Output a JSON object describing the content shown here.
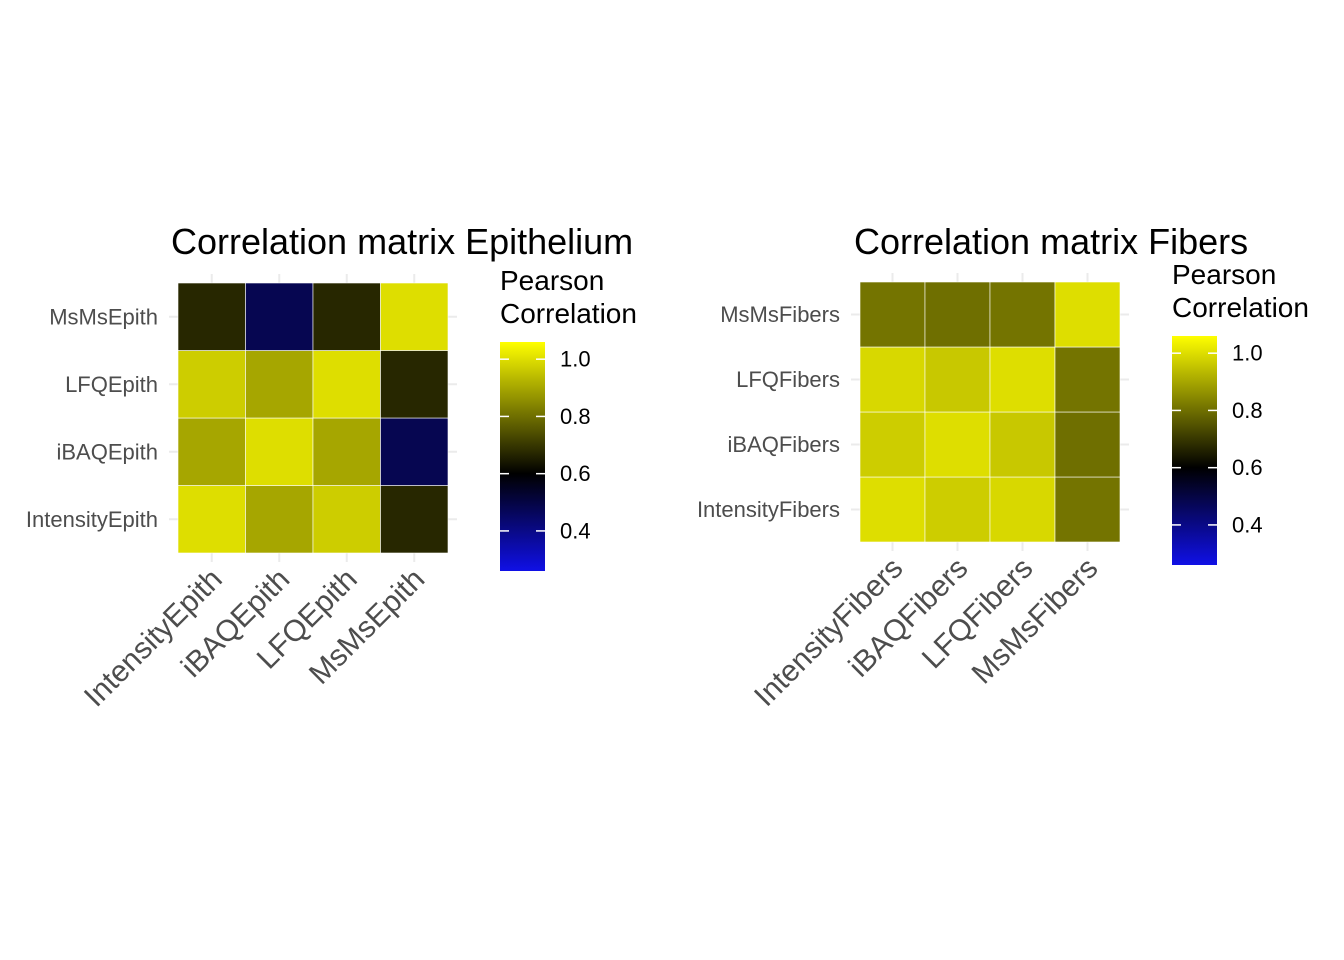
{
  "colors": {
    "low": "#1010e6",
    "mid": "#000000",
    "high": "#ffff00",
    "grid": "#ebebeb",
    "tick_label": "#4d4d4d",
    "text": "#000000",
    "tile_border": "#ffffff"
  },
  "chart_data": [
    {
      "type": "heatmap",
      "title": "Correlation matrix Epithelium",
      "xlabel": "",
      "ylabel": "",
      "x_categories": [
        "IntensityEpith",
        "iBAQEpith",
        "LFQEpith",
        "MsMsEpith"
      ],
      "y_categories": [
        "IntensityEpith",
        "iBAQEpith",
        "LFQEpith",
        "MsMsEpith"
      ],
      "values": [
        [
          1.0,
          0.9,
          0.97,
          0.67
        ],
        [
          0.9,
          1.0,
          0.9,
          0.48
        ],
        [
          0.97,
          0.9,
          1.0,
          0.67
        ],
        [
          0.67,
          0.48,
          0.67,
          1.0
        ]
      ],
      "legend": {
        "title_lines": [
          "Pearson",
          "Correlation"
        ],
        "ticks": [
          0.4,
          0.6,
          0.8,
          1.0
        ],
        "tick_labels": [
          "0.4",
          "0.6",
          "0.8",
          "1.0"
        ],
        "range": [
          0.26,
          1.06
        ],
        "midpoint": 0.6,
        "position": "right"
      }
    },
    {
      "type": "heatmap",
      "title": "Correlation matrix Fibers",
      "xlabel": "",
      "ylabel": "",
      "x_categories": [
        "IntensityFibers",
        "iBAQFibers",
        "LFQFibers",
        "MsMsFibers"
      ],
      "y_categories": [
        "IntensityFibers",
        "iBAQFibers",
        "LFQFibers",
        "MsMsFibers"
      ],
      "values": [
        [
          1.0,
          0.97,
          0.99,
          0.81
        ],
        [
          0.97,
          1.0,
          0.96,
          0.8
        ],
        [
          0.99,
          0.96,
          1.0,
          0.81
        ],
        [
          0.81,
          0.8,
          0.81,
          1.0
        ]
      ],
      "legend": {
        "title_lines": [
          "Pearson",
          "Correlation"
        ],
        "ticks": [
          0.4,
          0.6,
          0.8,
          1.0
        ],
        "tick_labels": [
          "0.4",
          "0.6",
          "0.8",
          "1.0"
        ],
        "range": [
          0.26,
          1.06
        ],
        "midpoint": 0.6,
        "position": "right"
      }
    }
  ]
}
